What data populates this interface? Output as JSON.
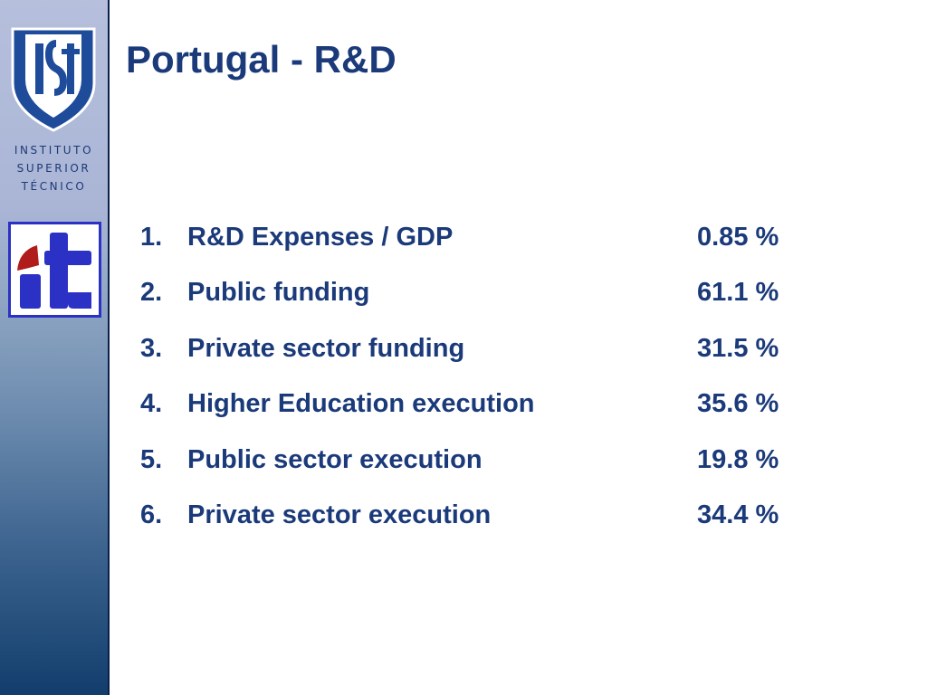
{
  "sidebar": {
    "institution_lines": [
      "INSTITUTO",
      "SUPERIOR",
      "TÉCNICO"
    ],
    "shield_monogram": "IST",
    "it_logo_text": "it",
    "colors": {
      "gradient_top": "#b6bfdc",
      "gradient_bottom": "#123d6c",
      "logo_blue": "#2b31c4",
      "logo_red": "#b01b1b",
      "shield_blue": "#1e4b9a"
    }
  },
  "slide": {
    "title": "Portugal - R&D",
    "text_color": "#1b3a7a"
  },
  "items": [
    {
      "number": "1.",
      "label": "R&D Expenses / GDP",
      "value": "0.85 %"
    },
    {
      "number": "2.",
      "label": "Public funding",
      "value": "61.1 %"
    },
    {
      "number": "3.",
      "label": "Private sector funding",
      "value": "31.5 %"
    },
    {
      "number": "4.",
      "label": "Higher Education execution",
      "value": "35.6 %"
    },
    {
      "number": "5.",
      "label": "Public sector execution",
      "value": "19.8 %"
    },
    {
      "number": "6.",
      "label": "Private sector execution",
      "value": "34.4 %"
    }
  ]
}
